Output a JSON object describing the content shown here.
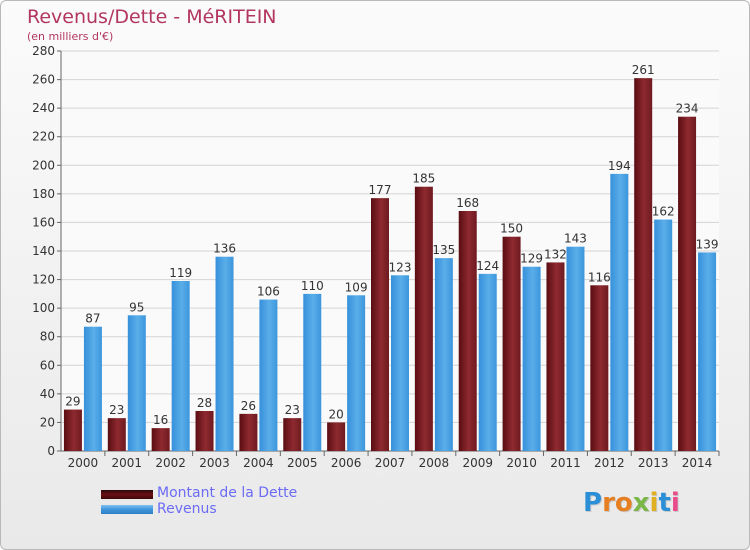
{
  "header": {
    "title": "Revenus/Dette - MéRITEIN",
    "subtitle": "(en milliers d'€)"
  },
  "legend": {
    "dette_label": "Montant de la Dette",
    "revenus_label": "Revenus"
  },
  "logo": {
    "text": "Proxiti"
  },
  "colors": {
    "dette": "#8b2b33",
    "revenus": "#4aa3e6",
    "axis": "#666666",
    "title": "#b2365f"
  },
  "chart_data": {
    "type": "bar",
    "title": "Revenus/Dette - MéRITEIN",
    "subtitle": "(en milliers d'€)",
    "categories": [
      "2000",
      "2001",
      "2002",
      "2003",
      "2004",
      "2005",
      "2006",
      "2007",
      "2008",
      "2009",
      "2010",
      "2011",
      "2012",
      "2013",
      "2014"
    ],
    "series": [
      {
        "name": "Montant de la Dette",
        "values": [
          29,
          23,
          16,
          28,
          26,
          23,
          20,
          177,
          185,
          168,
          150,
          132,
          116,
          261,
          234
        ]
      },
      {
        "name": "Revenus",
        "values": [
          87,
          95,
          119,
          136,
          106,
          110,
          109,
          123,
          135,
          124,
          129,
          143,
          194,
          162,
          139
        ]
      }
    ],
    "ylim": [
      0,
      280
    ],
    "yticks": [
      0,
      20,
      40,
      60,
      80,
      100,
      120,
      140,
      160,
      180,
      200,
      220,
      240,
      260,
      280
    ],
    "grid": true,
    "legend_position": "bottom-left"
  }
}
